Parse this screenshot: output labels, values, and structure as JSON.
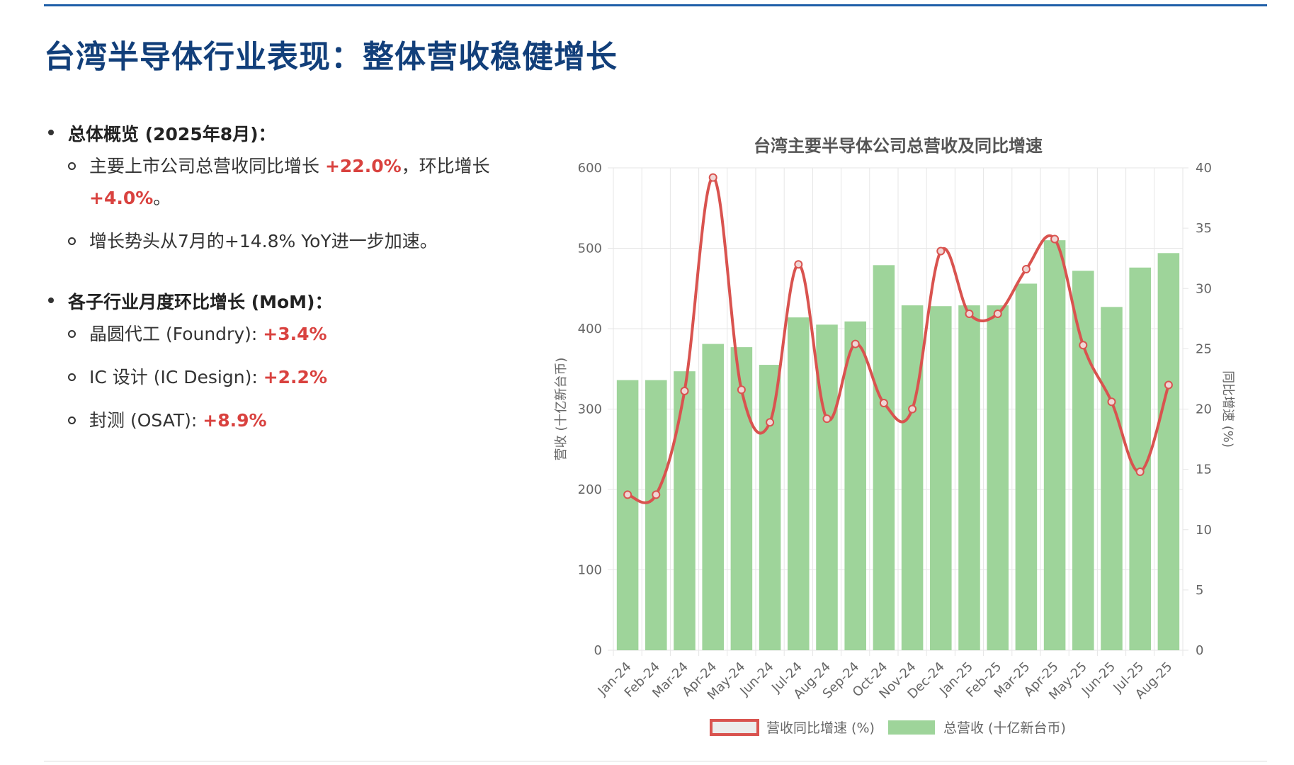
{
  "page": {
    "title": "台湾半导体行业表现：整体营收稳健增长"
  },
  "overview": {
    "heading": "总体概览 (2025年8月)：",
    "item1": {
      "pre": "主要上市公司总营收同比增长 ",
      "yoy": "+22.0%",
      "mid": "，环比增长 ",
      "mom": "+4.0%",
      "post": "。"
    },
    "item2": "增长势头从7月的+14.8% YoY进一步加速。"
  },
  "subsectors": {
    "heading": "各子行业月度环比增长 (MoM)：",
    "items": [
      {
        "label": "晶圆代工 (Foundry): ",
        "value": "+3.4%"
      },
      {
        "label": "IC 设计 (IC Design): ",
        "value": "+2.2%"
      },
      {
        "label": "封测 (OSAT): ",
        "value": "+8.9%"
      }
    ]
  },
  "chart_data": {
    "type": "bar",
    "title": "台湾主要半导体公司总营收及同比增速",
    "categories": [
      "Jan-24",
      "Feb-24",
      "Mar-24",
      "Apr-24",
      "May-24",
      "Jun-24",
      "Jul-24",
      "Aug-24",
      "Sep-24",
      "Oct-24",
      "Nov-24",
      "Dec-24",
      "Jan-25",
      "Feb-25",
      "Mar-25",
      "Apr-25",
      "May-25",
      "Jun-25",
      "Jul-25",
      "Aug-25"
    ],
    "series": [
      {
        "name": "营收同比增速 (%)",
        "type": "line",
        "axis": "right",
        "color": "#d9534f",
        "values": [
          12.9,
          12.9,
          21.5,
          39.2,
          21.6,
          18.9,
          32.0,
          19.2,
          25.4,
          20.5,
          20.0,
          33.1,
          27.9,
          27.9,
          31.6,
          34.1,
          25.3,
          20.6,
          14.8,
          22.0
        ]
      },
      {
        "name": "总营收 (十亿新台币)",
        "type": "bar",
        "axis": "left",
        "color": "#9ed49a",
        "values": [
          336,
          336,
          347,
          381,
          377,
          355,
          414,
          405,
          409,
          479,
          429,
          428,
          429,
          429,
          456,
          510,
          472,
          427,
          476,
          494
        ]
      }
    ],
    "ylabel": "营收 (十亿新台币)",
    "y2label": "同比增速 (%)",
    "ylim": [
      0,
      600
    ],
    "y2lim": [
      0,
      40
    ],
    "yticks": [
      "0",
      "100",
      "200",
      "300",
      "400",
      "500",
      "600"
    ],
    "y2ticks": [
      "0",
      "5",
      "10",
      "15",
      "20",
      "25",
      "30",
      "35",
      "40"
    ],
    "grid": true,
    "legend_position": "bottom"
  }
}
